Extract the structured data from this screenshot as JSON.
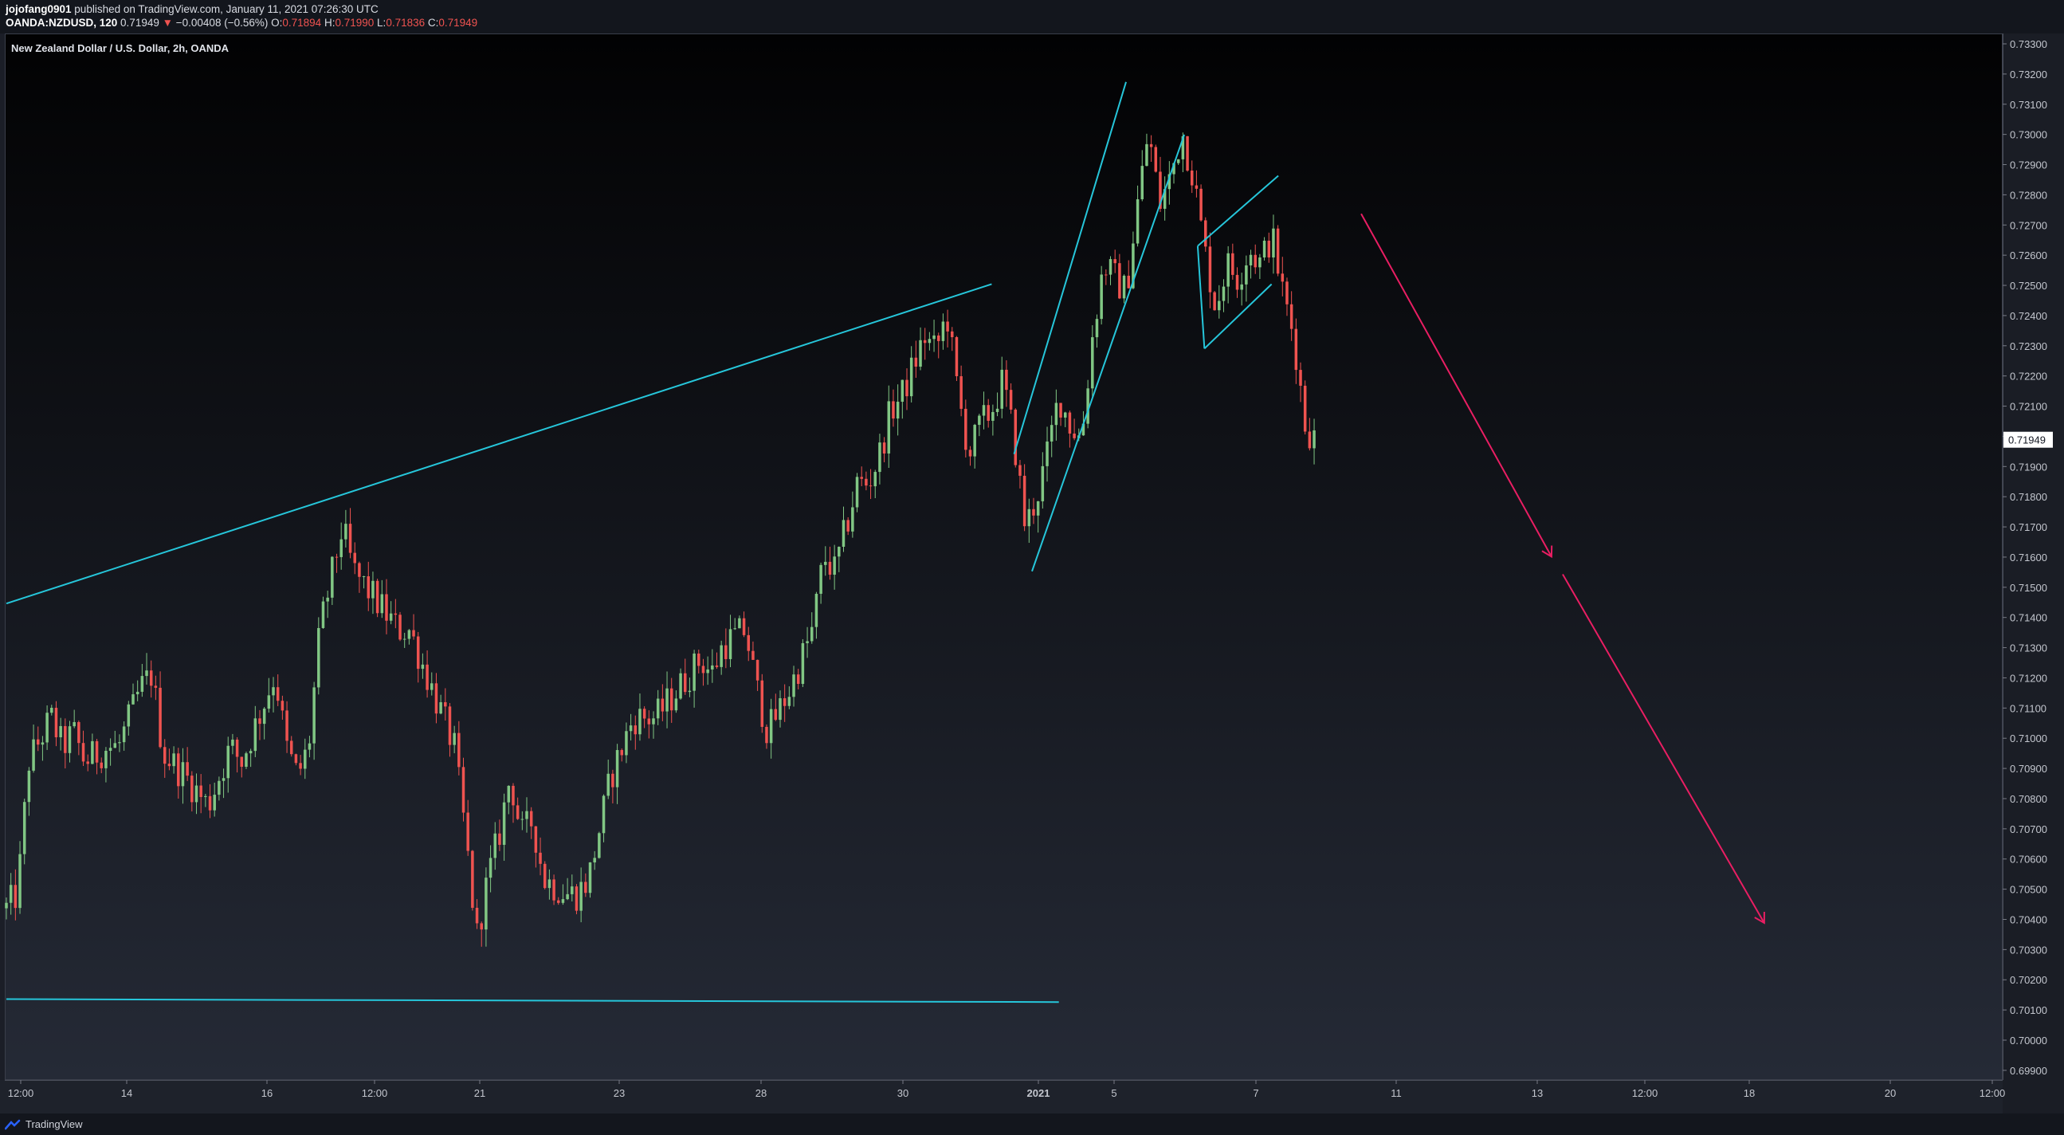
{
  "header": {
    "author": "jojofang0901",
    "published_text": "published on TradingView.com, January 11, 2021 07:26:30 UTC",
    "symbol": "OANDA:NZDUSD, 120",
    "last": "0.71949",
    "change_arrow": "▼",
    "change": "−0.00408 (−0.56%)",
    "o_label": "O:",
    "o_value": "0.71894",
    "h_label": "H:",
    "h_value": "0.71990",
    "l_label": "L:",
    "l_value": "0.71836",
    "c_label": "C:",
    "c_value": "0.71949"
  },
  "footer": {
    "brand": "TradingView"
  },
  "colors": {
    "up": "#81c784",
    "down": "#ef5350",
    "trendline": "#26c6da",
    "projection": "#e91e63",
    "price_tag_bg": "#ffffff"
  },
  "chart_data": {
    "type": "candlestick",
    "title": "New Zealand Dollar / U.S. Dollar, 2h, OANDA",
    "y_ticks": [
      "0.73300",
      "0.73200",
      "0.73100",
      "0.73000",
      "0.72900",
      "0.72800",
      "0.72700",
      "0.72600",
      "0.72500",
      "0.72400",
      "0.72300",
      "0.72200",
      "0.72100",
      "0.72000",
      "0.71900",
      "0.71800",
      "0.71700",
      "0.71600",
      "0.71500",
      "0.71400",
      "0.71300",
      "0.71200",
      "0.71100",
      "0.71000",
      "0.70900",
      "0.70800",
      "0.70700",
      "0.70600",
      "0.70500",
      "0.70400",
      "0.70300",
      "0.70200",
      "0.70100",
      "0.70000",
      "0.69900"
    ],
    "ylim": [
      0.6986,
      0.7335
    ],
    "x_ticks": [
      "12:00",
      "14",
      "16",
      "12:00",
      "21",
      "23",
      "28",
      "30",
      "2021",
      "5",
      "7",
      "11",
      "13",
      "12:00",
      "18",
      "20",
      "12:00"
    ],
    "last_price_label": "0.71949",
    "annotations": [
      {
        "type": "trendline",
        "name": "upper-resistance",
        "from": [
          0,
          0.7139
        ],
        "to": [
          44,
          0.7248
        ]
      },
      {
        "type": "trendline",
        "name": "lower-support",
        "from": [
          0,
          0.7004
        ],
        "to": [
          47,
          0.7003
        ]
      },
      {
        "type": "trendline",
        "name": "channel-upper",
        "from": [
          45,
          0.719
        ],
        "to": [
          50,
          0.7317
        ]
      },
      {
        "type": "trendline",
        "name": "channel-lower",
        "from": [
          45.8,
          0.715
        ],
        "to": [
          52.6,
          0.7299
        ]
      },
      {
        "type": "trendline",
        "name": "flag-upper",
        "from": [
          53.2,
          0.7261
        ],
        "to": [
          56.8,
          0.7285
        ]
      },
      {
        "type": "trendline",
        "name": "flag-lower",
        "from": [
          53.5,
          0.7226
        ],
        "to": [
          56.5,
          0.7248
        ]
      },
      {
        "type": "trendline",
        "name": "flag-left",
        "from": [
          53.2,
          0.7261
        ],
        "to": [
          53.5,
          0.7226
        ]
      },
      {
        "type": "arrow",
        "name": "projection-arrow-1",
        "from": [
          60.5,
          0.7272
        ],
        "to": [
          69,
          0.7155
        ]
      },
      {
        "type": "arrow",
        "name": "projection-arrow-2",
        "from": [
          69.5,
          0.7149
        ],
        "to": [
          78.5,
          0.703
        ]
      }
    ],
    "waypoints": [
      {
        "x": 0,
        "y": 0.7035
      },
      {
        "x": 0.5,
        "y": 0.704
      },
      {
        "x": 1,
        "y": 0.7085
      },
      {
        "x": 2,
        "y": 0.71
      },
      {
        "x": 2.5,
        "y": 0.709
      },
      {
        "x": 3,
        "y": 0.7095
      },
      {
        "x": 3.5,
        "y": 0.7085
      },
      {
        "x": 4.5,
        "y": 0.709
      },
      {
        "x": 5,
        "y": 0.709
      },
      {
        "x": 6,
        "y": 0.711
      },
      {
        "x": 6.5,
        "y": 0.7115
      },
      {
        "x": 7,
        "y": 0.7088
      },
      {
        "x": 8,
        "y": 0.708
      },
      {
        "x": 9,
        "y": 0.707
      },
      {
        "x": 10,
        "y": 0.709
      },
      {
        "x": 10.5,
        "y": 0.7085
      },
      {
        "x": 11,
        "y": 0.7095
      },
      {
        "x": 11.5,
        "y": 0.7105
      },
      {
        "x": 12,
        "y": 0.7115
      },
      {
        "x": 12.5,
        "y": 0.709
      },
      {
        "x": 13,
        "y": 0.708
      },
      {
        "x": 13.5,
        "y": 0.709
      },
      {
        "x": 14,
        "y": 0.713
      },
      {
        "x": 15,
        "y": 0.7165
      },
      {
        "x": 15.5,
        "y": 0.715
      },
      {
        "x": 16,
        "y": 0.7145
      },
      {
        "x": 17,
        "y": 0.7135
      },
      {
        "x": 17.5,
        "y": 0.713
      },
      {
        "x": 18,
        "y": 0.713
      },
      {
        "x": 19,
        "y": 0.711
      },
      {
        "x": 20,
        "y": 0.709
      },
      {
        "x": 20.5,
        "y": 0.706
      },
      {
        "x": 21,
        "y": 0.7025
      },
      {
        "x": 21.5,
        "y": 0.7045
      },
      {
        "x": 22,
        "y": 0.706
      },
      {
        "x": 22.5,
        "y": 0.708
      },
      {
        "x": 23,
        "y": 0.706
      },
      {
        "x": 23.5,
        "y": 0.7065
      },
      {
        "x": 24,
        "y": 0.7045
      },
      {
        "x": 25,
        "y": 0.704
      },
      {
        "x": 25.5,
        "y": 0.704
      },
      {
        "x": 26,
        "y": 0.7045
      },
      {
        "x": 27,
        "y": 0.708
      },
      {
        "x": 27.5,
        "y": 0.709
      },
      {
        "x": 28,
        "y": 0.71
      },
      {
        "x": 29,
        "y": 0.71
      },
      {
        "x": 30,
        "y": 0.711
      },
      {
        "x": 31,
        "y": 0.712
      },
      {
        "x": 31.5,
        "y": 0.7115
      },
      {
        "x": 32,
        "y": 0.7125
      },
      {
        "x": 33,
        "y": 0.713
      },
      {
        "x": 33.5,
        "y": 0.711
      },
      {
        "x": 34,
        "y": 0.7095
      },
      {
        "x": 35,
        "y": 0.711
      },
      {
        "x": 35.5,
        "y": 0.712
      },
      {
        "x": 36,
        "y": 0.713
      },
      {
        "x": 36.5,
        "y": 0.7155
      },
      {
        "x": 37,
        "y": 0.715
      },
      {
        "x": 37.5,
        "y": 0.7165
      },
      {
        "x": 38,
        "y": 0.718
      },
      {
        "x": 38.5,
        "y": 0.718
      },
      {
        "x": 39,
        "y": 0.719
      },
      {
        "x": 39.5,
        "y": 0.7205
      },
      {
        "x": 40,
        "y": 0.721
      },
      {
        "x": 40.5,
        "y": 0.722
      },
      {
        "x": 41,
        "y": 0.723
      },
      {
        "x": 41.5,
        "y": 0.7225
      },
      {
        "x": 42,
        "y": 0.7238
      },
      {
        "x": 42.5,
        "y": 0.721
      },
      {
        "x": 43,
        "y": 0.719
      },
      {
        "x": 43.5,
        "y": 0.72
      },
      {
        "x": 44,
        "y": 0.7205
      },
      {
        "x": 44.5,
        "y": 0.7215
      },
      {
        "x": 45,
        "y": 0.7195
      },
      {
        "x": 45.5,
        "y": 0.7165
      },
      {
        "x": 46,
        "y": 0.7175
      },
      {
        "x": 46.5,
        "y": 0.719
      },
      {
        "x": 47,
        "y": 0.721
      },
      {
        "x": 47.5,
        "y": 0.72
      },
      {
        "x": 48,
        "y": 0.7195
      },
      {
        "x": 48.5,
        "y": 0.723
      },
      {
        "x": 49,
        "y": 0.7255
      },
      {
        "x": 49.5,
        "y": 0.725
      },
      {
        "x": 50,
        "y": 0.7245
      },
      {
        "x": 50.5,
        "y": 0.7275
      },
      {
        "x": 51,
        "y": 0.73
      },
      {
        "x": 51.5,
        "y": 0.7275
      },
      {
        "x": 52,
        "y": 0.7285
      },
      {
        "x": 52.5,
        "y": 0.73
      },
      {
        "x": 53,
        "y": 0.7285
      },
      {
        "x": 53.5,
        "y": 0.726
      },
      {
        "x": 54,
        "y": 0.724
      },
      {
        "x": 54.5,
        "y": 0.7255
      },
      {
        "x": 55,
        "y": 0.725
      },
      {
        "x": 55.5,
        "y": 0.726
      },
      {
        "x": 56,
        "y": 0.7255
      },
      {
        "x": 56.5,
        "y": 0.7265
      },
      {
        "x": 57,
        "y": 0.7245
      },
      {
        "x": 57.5,
        "y": 0.723
      },
      {
        "x": 58,
        "y": 0.72
      },
      {
        "x": 58.4,
        "y": 0.7195
      }
    ]
  }
}
